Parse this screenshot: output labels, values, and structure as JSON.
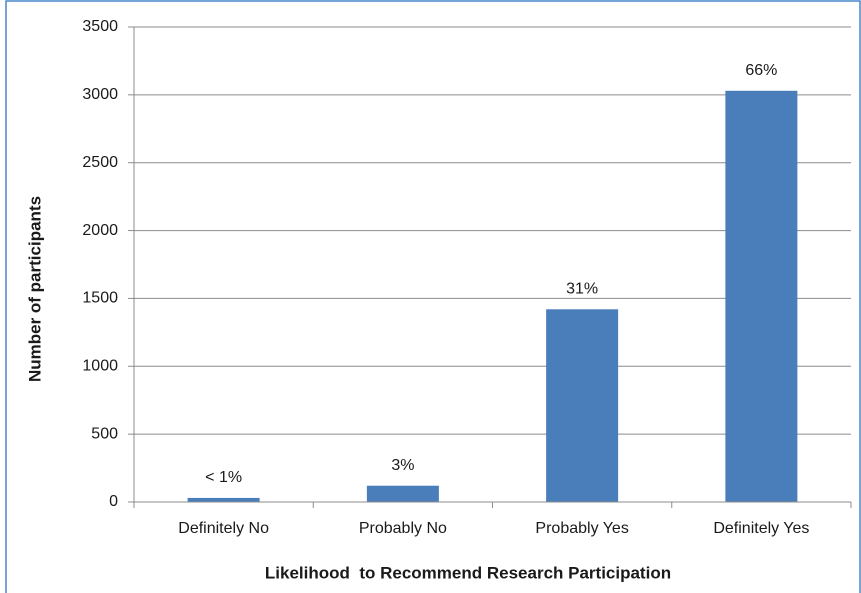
{
  "chart_data": {
    "type": "bar",
    "x_label": "Likelihood  to Recommend Research Participation",
    "y_label": "Number of participants",
    "categories": [
      "Definitely No",
      "Probably No",
      "Probably Yes",
      "Definitely Yes"
    ],
    "values": [
      30,
      120,
      1420,
      3030
    ],
    "percent_labels": [
      "< 1%",
      "3%",
      "31%",
      "66%"
    ],
    "color": "#4a7ebb",
    "ylim": [
      0,
      3500
    ],
    "yticks": [
      0,
      500,
      1000,
      1500,
      2000,
      2500,
      3000,
      3500
    ],
    "grid": true
  }
}
